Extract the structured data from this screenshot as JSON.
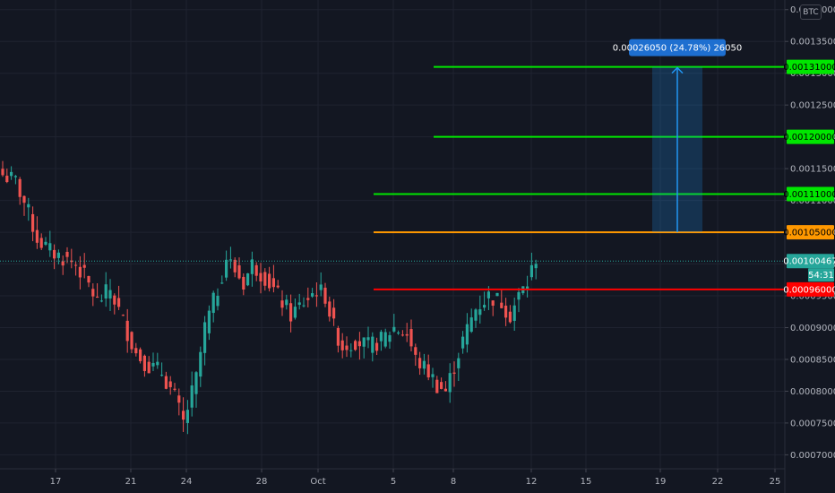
{
  "currency_badge": "BTC",
  "chart_data": {
    "type": "candlestick",
    "x_ticks": [
      "17",
      "21",
      "24",
      "28",
      "Oct",
      "5",
      "8",
      "12",
      "15",
      "19",
      "22",
      "25"
    ],
    "y_ticks": [
      "0.00070000",
      "0.00075000",
      "0.00080000",
      "0.00085000",
      "0.00090000",
      "0.00095000",
      "0.00100000",
      "0.00105000",
      "0.00110000",
      "0.00115000",
      "0.00120000",
      "0.00125000",
      "0.00130000",
      "0.00135000",
      "0.00140000"
    ],
    "ylim": [
      0.000678,
      0.001425
    ],
    "last_price": {
      "label": "0.00100467",
      "value": 0.00100467,
      "countdown": "54:31",
      "color": "#26a69a"
    },
    "horizontal_lines": [
      {
        "label": "0.00131000",
        "value": 0.00131,
        "color": "#00e600",
        "start_tick": "8"
      },
      {
        "label": "0.00120000",
        "value": 0.0012,
        "color": "#00e600",
        "start_tick": "8"
      },
      {
        "label": "0.00111000",
        "value": 0.00111,
        "color": "#00e600",
        "start_tick": "5"
      },
      {
        "label": "0.00105000",
        "value": 0.00105,
        "color": "#ff9800",
        "start_tick": "5"
      },
      {
        "label": "0.00096000",
        "value": 0.00096,
        "color": "#ff0000",
        "start_tick": "5"
      }
    ],
    "measure": {
      "label": "0.00026050 (24.78%) 26050",
      "from": 0.00105,
      "to": 0.00131,
      "start_tick": "19",
      "color": "#2196f3"
    },
    "series_anchors": [
      [
        0,
        0.00114
      ],
      [
        3,
        0.00113
      ],
      [
        6,
        0.00108
      ],
      [
        8,
        0.00104
      ],
      [
        11,
        0.00102
      ],
      [
        14,
        0.00101
      ],
      [
        17,
        0.001
      ],
      [
        19,
        0.00098
      ],
      [
        22,
        0.00094
      ],
      [
        25,
        0.00096
      ],
      [
        28,
        0.00091
      ],
      [
        31,
        0.00086
      ],
      [
        34,
        0.00084
      ],
      [
        37,
        0.00083
      ],
      [
        40,
        0.00079
      ],
      [
        42,
        0.00075
      ],
      [
        45,
        0.00082
      ],
      [
        47,
        0.0009
      ],
      [
        50,
        0.00096
      ],
      [
        52,
        0.00101
      ],
      [
        54,
        0.00099
      ],
      [
        56,
        0.00097
      ],
      [
        58,
        0.001
      ],
      [
        61,
        0.00098
      ],
      [
        64,
        0.00095
      ],
      [
        67,
        0.00092
      ],
      [
        70,
        0.00094
      ],
      [
        73,
        0.00096
      ],
      [
        75,
        0.00095
      ],
      [
        77,
        0.0009
      ],
      [
        79,
        0.00087
      ],
      [
        82,
        0.00088
      ],
      [
        85,
        0.00087
      ],
      [
        88,
        0.00088
      ],
      [
        91,
        0.0009
      ],
      [
        94,
        0.00089
      ],
      [
        96,
        0.00085
      ],
      [
        99,
        0.00083
      ],
      [
        101,
        0.00081
      ],
      [
        103,
        0.0008
      ],
      [
        105,
        0.00084
      ],
      [
        107,
        0.00088
      ],
      [
        110,
        0.00093
      ],
      [
        113,
        0.00095
      ],
      [
        116,
        0.00094
      ],
      [
        118,
        0.00092
      ],
      [
        120,
        0.00095
      ],
      [
        122,
        0.00097
      ],
      [
        124,
        0.00101
      ]
    ],
    "up_color": "#26a69a",
    "down_color": "#ef5350"
  }
}
